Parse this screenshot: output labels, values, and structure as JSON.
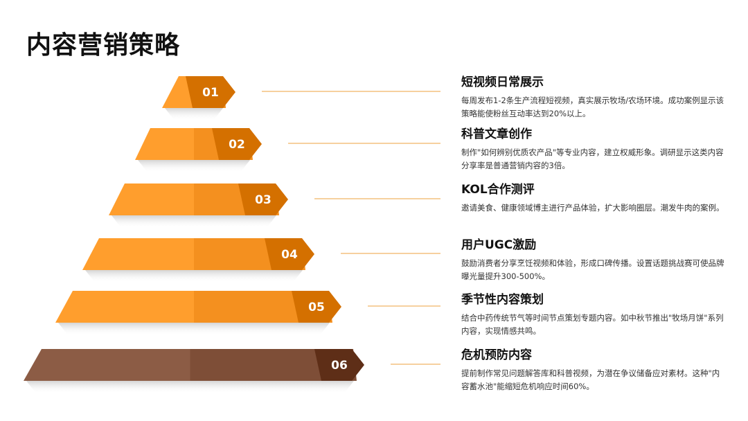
{
  "page": {
    "title": "内容营销策略"
  },
  "strategies": [
    {
      "num": "01",
      "title": "短视频日常展示",
      "desc": "每周发布1-2条生产流程短视频，真实展示牧场/农场环境。成功案例显示该策略能使粉丝互动率达到20%以上。",
      "color": "#F08C1B"
    },
    {
      "num": "02",
      "title": "科普文章创作",
      "desc": "制作\"如何辨别优质农产品\"等专业内容，建立权威形象。调研显示这类内容分享率是普通营销内容的3倍。",
      "color": "#F08C1B"
    },
    {
      "num": "03",
      "title": "KOL合作测评",
      "desc": "邀请美食、健康领域博主进行产品体验，扩大影响圈层。潮发牛肉的案例。",
      "color": "#F08C1B"
    },
    {
      "num": "04",
      "title": "用户UGC激励",
      "desc": "鼓励消费者分享烹饪视频和体验，形成口碑传播。设置话题挑战赛可使品牌曝光量提升300-500%。",
      "color": "#F08C1B"
    },
    {
      "num": "05",
      "title": "季节性内容策划",
      "desc": "结合中药传统节气等时间节点策划专题内容。如中秋节推出\"牧场月饼\"系列内容，实现情感共鸣。",
      "color": "#F08C1B"
    },
    {
      "num": "06",
      "title": "危机预防内容",
      "desc": "提前制作常见问题解答库和科普视频，为潜在争议储备应对素材。这种\"内容蓄水池\"能缩短危机响应时间60%。",
      "color": "#7A4A33"
    }
  ]
}
